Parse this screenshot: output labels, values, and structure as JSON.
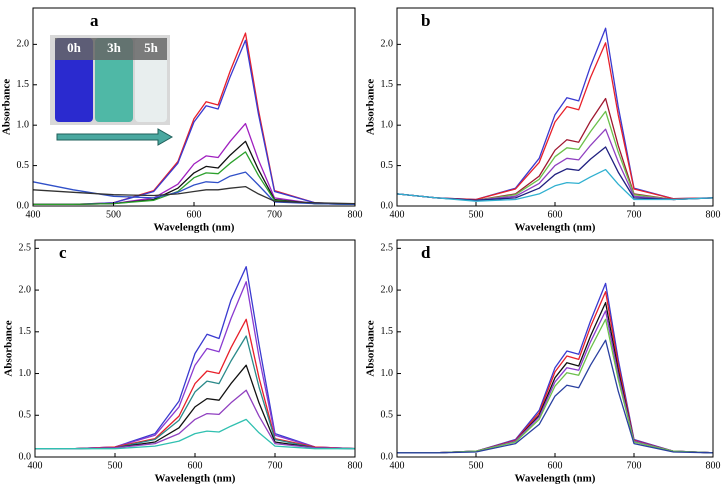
{
  "chart_data": [
    {
      "type": "line",
      "panel_label": "a",
      "x_label": "Wavelength (nm)",
      "y_label": "Absorbance",
      "inset_labels": [
        "0h",
        "3h",
        "5h"
      ],
      "x": [
        400,
        450,
        500,
        550,
        580,
        600,
        615,
        630,
        645,
        664,
        680,
        700,
        750,
        800
      ],
      "xlim": [
        400,
        800
      ],
      "xticks": [
        400,
        500,
        600,
        700,
        800
      ],
      "ylim": [
        0,
        2.45
      ],
      "yticks": [
        {
          "value": 0,
          "label": "0.0"
        },
        {
          "value": 0.5,
          "label": "0.5"
        },
        {
          "value": 1,
          "label": "1.0"
        },
        {
          "value": 1.5,
          "label": "1.5"
        },
        {
          "value": 2,
          "label": "2.0"
        }
      ],
      "series": [
        {
          "color": "#e8202a",
          "values": [
            0.02,
            0.02,
            0.04,
            0.19,
            0.55,
            1.08,
            1.29,
            1.25,
            1.67,
            2.14,
            1.19,
            0.19,
            0.04,
            0.02
          ]
        },
        {
          "color": "#3a3ad0",
          "values": [
            0.02,
            0.02,
            0.04,
            0.18,
            0.53,
            1.04,
            1.24,
            1.2,
            1.6,
            2.05,
            1.14,
            0.18,
            0.04,
            0.02
          ]
        },
        {
          "color": "#a020c0",
          "values": [
            0.02,
            0.02,
            0.03,
            0.1,
            0.27,
            0.52,
            0.62,
            0.6,
            0.8,
            1.02,
            0.57,
            0.1,
            0.03,
            0.02
          ]
        },
        {
          "color": "#111111",
          "values": [
            0.02,
            0.02,
            0.03,
            0.08,
            0.22,
            0.41,
            0.49,
            0.47,
            0.63,
            0.8,
            0.45,
            0.08,
            0.03,
            0.02
          ]
        },
        {
          "color": "#2ca02c",
          "values": [
            0.02,
            0.02,
            0.03,
            0.07,
            0.18,
            0.35,
            0.41,
            0.4,
            0.53,
            0.67,
            0.38,
            0.07,
            0.03,
            0.02
          ]
        },
        {
          "color": "#3050c8",
          "values": [
            0.3,
            0.2,
            0.12,
            0.1,
            0.17,
            0.26,
            0.3,
            0.29,
            0.37,
            0.42,
            0.26,
            0.05,
            0.03,
            0.02
          ]
        },
        {
          "color": "#333333",
          "values": [
            0.2,
            0.17,
            0.14,
            0.13,
            0.15,
            0.18,
            0.2,
            0.2,
            0.22,
            0.24,
            0.15,
            0.06,
            0.04,
            0.03
          ]
        }
      ]
    },
    {
      "type": "line",
      "panel_label": "b",
      "x_label": "Wavelength (nm)",
      "y_label": "Absorbance",
      "x": [
        400,
        450,
        500,
        550,
        580,
        600,
        615,
        630,
        645,
        664,
        680,
        700,
        750,
        800
      ],
      "xlim": [
        400,
        800
      ],
      "xticks": [
        400,
        500,
        600,
        700,
        800
      ],
      "ylim": [
        0,
        2.45
      ],
      "yticks": [
        {
          "value": 0,
          "label": "0.0"
        },
        {
          "value": 0.5,
          "label": "0.5"
        },
        {
          "value": 1,
          "label": "1.0"
        },
        {
          "value": 1.5,
          "label": "1.5"
        },
        {
          "value": 2,
          "label": "2.0"
        }
      ],
      "series": [
        {
          "color": "#3a3ad0",
          "values": [
            0.15,
            0.1,
            0.08,
            0.22,
            0.59,
            1.13,
            1.34,
            1.3,
            1.73,
            2.2,
            1.23,
            0.22,
            0.09,
            0.1
          ]
        },
        {
          "color": "#e8202a",
          "values": [
            0.15,
            0.1,
            0.08,
            0.21,
            0.54,
            1.04,
            1.23,
            1.19,
            1.59,
            2.02,
            1.13,
            0.21,
            0.09,
            0.1
          ]
        },
        {
          "color": "#a01830",
          "values": [
            0.15,
            0.1,
            0.07,
            0.15,
            0.37,
            0.69,
            0.82,
            0.79,
            1.05,
            1.33,
            0.75,
            0.15,
            0.08,
            0.1
          ]
        },
        {
          "color": "#6cc04a",
          "values": [
            0.15,
            0.1,
            0.07,
            0.14,
            0.33,
            0.61,
            0.72,
            0.7,
            0.92,
            1.17,
            0.67,
            0.14,
            0.08,
            0.1
          ]
        },
        {
          "color": "#9040c0",
          "values": [
            0.15,
            0.1,
            0.07,
            0.12,
            0.28,
            0.5,
            0.59,
            0.57,
            0.75,
            0.95,
            0.55,
            0.12,
            0.08,
            0.1
          ]
        },
        {
          "color": "#202080",
          "values": [
            0.15,
            0.1,
            0.07,
            0.1,
            0.22,
            0.39,
            0.46,
            0.44,
            0.58,
            0.73,
            0.42,
            0.1,
            0.08,
            0.1
          ]
        },
        {
          "color": "#30b0d0",
          "values": [
            0.15,
            0.1,
            0.06,
            0.08,
            0.15,
            0.25,
            0.29,
            0.28,
            0.36,
            0.45,
            0.27,
            0.08,
            0.08,
            0.1
          ]
        }
      ]
    },
    {
      "type": "line",
      "panel_label": "c",
      "x_label": "Wavelength (nm)",
      "y_label": "Absorbance",
      "x": [
        400,
        450,
        500,
        550,
        580,
        600,
        615,
        630,
        645,
        664,
        680,
        700,
        750,
        800
      ],
      "xlim": [
        400,
        800
      ],
      "xticks": [
        400,
        500,
        600,
        700,
        800
      ],
      "ylim": [
        0,
        2.6
      ],
      "yticks": [
        {
          "value": 0,
          "label": "0.0"
        },
        {
          "value": 0.5,
          "label": "0.5"
        },
        {
          "value": 1,
          "label": "1.0"
        },
        {
          "value": 1.5,
          "label": "1.5"
        },
        {
          "value": 2,
          "label": "2.0"
        },
        {
          "value": 2.5,
          "label": "2.5"
        }
      ],
      "series": [
        {
          "color": "#3a3ad0",
          "values": [
            0.1,
            0.1,
            0.12,
            0.28,
            0.67,
            1.24,
            1.47,
            1.42,
            1.88,
            2.28,
            1.35,
            0.28,
            0.12,
            0.1
          ]
        },
        {
          "color": "#8a3ad0",
          "values": [
            0.1,
            0.1,
            0.12,
            0.26,
            0.6,
            1.1,
            1.3,
            1.26,
            1.66,
            2.1,
            1.2,
            0.26,
            0.12,
            0.1
          ]
        },
        {
          "color": "#e8202a",
          "values": [
            0.1,
            0.1,
            0.12,
            0.22,
            0.49,
            0.88,
            1.03,
            1.0,
            1.31,
            1.65,
            0.95,
            0.22,
            0.12,
            0.1
          ]
        },
        {
          "color": "#2a8a8a",
          "values": [
            0.1,
            0.1,
            0.11,
            0.21,
            0.44,
            0.78,
            0.91,
            0.88,
            1.15,
            1.45,
            0.84,
            0.21,
            0.11,
            0.1
          ]
        },
        {
          "color": "#111111",
          "values": [
            0.1,
            0.1,
            0.11,
            0.18,
            0.35,
            0.6,
            0.7,
            0.68,
            0.88,
            1.1,
            0.65,
            0.18,
            0.11,
            0.1
          ]
        },
        {
          "color": "#9040c0",
          "values": [
            0.1,
            0.1,
            0.11,
            0.16,
            0.28,
            0.45,
            0.52,
            0.51,
            0.65,
            0.8,
            0.49,
            0.16,
            0.11,
            0.1
          ]
        },
        {
          "color": "#30c0b0",
          "values": [
            0.1,
            0.1,
            0.1,
            0.13,
            0.19,
            0.28,
            0.31,
            0.3,
            0.37,
            0.45,
            0.29,
            0.13,
            0.1,
            0.1
          ]
        }
      ]
    },
    {
      "type": "line",
      "panel_label": "d",
      "x_label": "Wavelength (nm)",
      "y_label": "Absorbance",
      "x": [
        400,
        450,
        500,
        550,
        580,
        600,
        615,
        630,
        645,
        664,
        680,
        700,
        750,
        800
      ],
      "xlim": [
        400,
        800
      ],
      "xticks": [
        400,
        500,
        600,
        700,
        800
      ],
      "ylim": [
        0,
        2.6
      ],
      "yticks": [
        {
          "value": 0,
          "label": "0.0"
        },
        {
          "value": 0.5,
          "label": "0.5"
        },
        {
          "value": 1,
          "label": "1.0"
        },
        {
          "value": 1.5,
          "label": "1.5"
        },
        {
          "value": 2,
          "label": "2.0"
        },
        {
          "value": 2.5,
          "label": "2.5"
        }
      ],
      "series": [
        {
          "color": "#3a3ad0",
          "values": [
            0.05,
            0.05,
            0.07,
            0.21,
            0.56,
            1.07,
            1.27,
            1.23,
            1.63,
            2.08,
            1.17,
            0.21,
            0.07,
            0.05
          ]
        },
        {
          "color": "#e8202a",
          "values": [
            0.05,
            0.05,
            0.07,
            0.2,
            0.53,
            1.02,
            1.21,
            1.17,
            1.56,
            1.98,
            1.11,
            0.2,
            0.07,
            0.05
          ]
        },
        {
          "color": "#111111",
          "values": [
            0.05,
            0.05,
            0.07,
            0.19,
            0.5,
            0.95,
            1.13,
            1.09,
            1.45,
            1.85,
            1.04,
            0.19,
            0.07,
            0.05
          ]
        },
        {
          "color": "#8a3ad0",
          "values": [
            0.05,
            0.05,
            0.07,
            0.19,
            0.48,
            0.9,
            1.07,
            1.04,
            1.38,
            1.75,
            0.99,
            0.19,
            0.07,
            0.05
          ]
        },
        {
          "color": "#6cc04a",
          "values": [
            0.05,
            0.05,
            0.07,
            0.18,
            0.45,
            0.85,
            1.01,
            0.98,
            1.3,
            1.65,
            0.93,
            0.18,
            0.07,
            0.05
          ]
        },
        {
          "color": "#2a40a0",
          "values": [
            0.05,
            0.05,
            0.06,
            0.16,
            0.39,
            0.73,
            0.86,
            0.83,
            1.1,
            1.4,
            0.79,
            0.16,
            0.06,
            0.05
          ]
        }
      ]
    }
  ]
}
